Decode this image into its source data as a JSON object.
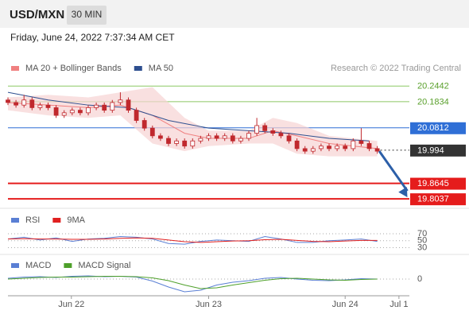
{
  "header": {
    "symbol": "USD/MXN",
    "interval": "30 MIN",
    "timestamp": "Friday, June 24, 2022 7:37:34 AM CET"
  },
  "chart_data": {
    "type": "candlestick",
    "source": "Research © 2022 Trading Central",
    "xlim": [
      0,
      100
    ],
    "xticks": [
      {
        "value": 15.8,
        "label": "Jun 22"
      },
      {
        "value": 50,
        "label": "Jun 23"
      },
      {
        "value": 84,
        "label": "Jun 24"
      },
      {
        "value": 97.4,
        "label": "Jul 1"
      }
    ],
    "ylim": [
      19.77,
      20.36
    ],
    "up_color": "#ffffff",
    "down_color": "#c0282d",
    "candles": {
      "x": [
        0,
        2,
        4,
        6,
        8,
        10,
        12,
        14,
        16,
        18,
        20,
        22,
        24,
        26,
        28,
        30,
        32,
        34,
        36,
        38,
        40,
        42,
        44,
        46,
        48,
        50,
        52,
        54,
        56,
        58,
        60,
        62,
        64,
        66,
        68,
        70,
        72,
        74,
        76,
        78,
        80,
        82,
        84,
        86,
        88,
        90,
        92
      ],
      "open": [
        20.19,
        20.18,
        20.17,
        20.19,
        20.16,
        20.17,
        20.16,
        20.13,
        20.14,
        20.15,
        20.14,
        20.16,
        20.17,
        20.15,
        20.18,
        20.19,
        20.15,
        20.11,
        20.08,
        20.05,
        20.04,
        20.02,
        20.03,
        20.01,
        20.03,
        20.04,
        20.05,
        20.04,
        20.05,
        20.03,
        20.04,
        20.06,
        20.09,
        20.07,
        20.06,
        20.05,
        20.03,
        20.0,
        19.99,
        20.0,
        20.01,
        20.0,
        20.01,
        20.0,
        20.03,
        20.02,
        20.0
      ],
      "high": [
        20.2,
        20.19,
        20.21,
        20.2,
        20.18,
        20.18,
        20.17,
        20.15,
        20.16,
        20.16,
        20.17,
        20.18,
        20.18,
        20.19,
        20.22,
        20.2,
        20.16,
        20.12,
        20.09,
        20.06,
        20.05,
        20.04,
        20.04,
        20.04,
        20.05,
        20.06,
        20.06,
        20.06,
        20.06,
        20.05,
        20.07,
        20.12,
        20.1,
        20.08,
        20.07,
        20.06,
        20.04,
        20.01,
        20.01,
        20.02,
        20.02,
        20.02,
        20.02,
        20.04,
        20.08,
        20.03,
        20.01
      ],
      "low": [
        20.17,
        20.16,
        20.16,
        20.15,
        20.15,
        20.15,
        20.12,
        20.12,
        20.13,
        20.13,
        20.13,
        20.15,
        20.14,
        20.14,
        20.17,
        20.14,
        20.1,
        20.07,
        20.04,
        20.03,
        20.01,
        20.01,
        20.0,
        20.0,
        20.02,
        20.03,
        20.03,
        20.03,
        20.02,
        20.02,
        20.03,
        20.05,
        20.06,
        20.05,
        20.04,
        20.02,
        19.99,
        19.98,
        19.98,
        19.99,
        19.99,
        19.99,
        19.99,
        19.99,
        20.01,
        19.99,
        19.98
      ],
      "close": [
        20.18,
        20.17,
        20.19,
        20.16,
        20.17,
        20.16,
        20.13,
        20.14,
        20.15,
        20.14,
        20.16,
        20.17,
        20.15,
        20.18,
        20.19,
        20.15,
        20.11,
        20.08,
        20.05,
        20.04,
        20.02,
        20.03,
        20.01,
        20.03,
        20.04,
        20.05,
        20.04,
        20.05,
        20.03,
        20.04,
        20.06,
        20.09,
        20.07,
        20.06,
        20.05,
        20.03,
        20.0,
        19.99,
        20.0,
        20.01,
        20.0,
        20.01,
        20.0,
        20.03,
        20.02,
        20.0,
        19.99
      ]
    },
    "bollinger": {
      "name": "MA 20 + Bollinger Bands",
      "color": "#f08080",
      "band_color": "#f7d3d3",
      "x": [
        0,
        10,
        20,
        28,
        36,
        44,
        50,
        60,
        66,
        72,
        80,
        92
      ],
      "upper": [
        20.2,
        20.21,
        20.2,
        20.22,
        20.24,
        20.12,
        20.07,
        20.07,
        20.12,
        20.1,
        20.05,
        20.03
      ],
      "middle": [
        20.18,
        20.17,
        20.16,
        20.17,
        20.13,
        20.06,
        20.04,
        20.04,
        20.07,
        20.05,
        20.02,
        20.0
      ],
      "lower": [
        20.15,
        20.13,
        20.12,
        20.13,
        20.02,
        19.99,
        20.01,
        20.02,
        20.02,
        19.98,
        19.97,
        19.97
      ]
    },
    "ma50": {
      "name": "MA 50",
      "color": "#2e4f8f",
      "x": [
        0,
        10,
        20,
        30,
        40,
        50,
        60,
        70,
        80,
        90
      ],
      "values": [
        20.22,
        20.19,
        20.17,
        20.16,
        20.11,
        20.08,
        20.07,
        20.06,
        20.04,
        20.03
      ]
    },
    "levels": [
      {
        "value": 20.2442,
        "color": "#8cc864",
        "text_color": "#5aa02c",
        "line": "solid",
        "line_width": 1,
        "label_style": "text"
      },
      {
        "value": 20.1834,
        "color": "#8cc864",
        "text_color": "#5aa02c",
        "line": "solid",
        "line_width": 1,
        "label_style": "text"
      },
      {
        "value": 20.0812,
        "color": "#2f6fd6",
        "text_color": "#ffffff",
        "line": "solid",
        "line_width": 1,
        "label_style": "box"
      },
      {
        "value": 19.994,
        "color": "#333333",
        "text_color": "#ffffff",
        "line": "dotted",
        "line_width": 1,
        "label_style": "box"
      },
      {
        "value": 19.8645,
        "color": "#e51c1c",
        "text_color": "#ffffff",
        "line": "solid",
        "line_width": 2,
        "label_style": "box"
      },
      {
        "value": 19.8037,
        "color": "#e51c1c",
        "text_color": "#ffffff",
        "line": "solid",
        "line_width": 2,
        "label_style": "box"
      }
    ],
    "forecast_arrow": {
      "x": [
        92.5,
        99.5
      ],
      "y": [
        19.99,
        19.81
      ],
      "color": "#2c5fa8"
    },
    "rsi": {
      "ylim": [
        15,
        85
      ],
      "yticks": [
        30,
        50,
        70
      ],
      "series": [
        {
          "name": "RSI",
          "color": "#5a7fd4",
          "x": [
            0,
            4,
            8,
            12,
            16,
            20,
            24,
            28,
            32,
            36,
            40,
            44,
            48,
            52,
            56,
            60,
            64,
            68,
            72,
            76,
            80,
            84,
            88,
            92
          ],
          "values": [
            55,
            60,
            52,
            58,
            48,
            55,
            57,
            62,
            60,
            55,
            42,
            40,
            48,
            52,
            50,
            48,
            62,
            55,
            45,
            45,
            50,
            52,
            55,
            48
          ]
        },
        {
          "name": "9MA",
          "color": "#e02020",
          "x": [
            0,
            4,
            8,
            12,
            16,
            20,
            24,
            28,
            32,
            36,
            40,
            44,
            48,
            52,
            56,
            60,
            64,
            68,
            72,
            76,
            80,
            84,
            88,
            92
          ],
          "values": [
            55,
            56,
            55,
            55,
            54,
            54,
            55,
            57,
            58,
            57,
            52,
            47,
            45,
            47,
            49,
            50,
            53,
            54,
            51,
            48,
            47,
            49,
            51,
            51
          ]
        }
      ]
    },
    "macd": {
      "ylim": [
        -0.04,
        0.04
      ],
      "yticks": [
        0
      ],
      "series": [
        {
          "name": "MACD",
          "color": "#5a7fd4",
          "x": [
            0,
            4,
            8,
            12,
            16,
            20,
            24,
            28,
            32,
            36,
            40,
            44,
            48,
            52,
            56,
            60,
            64,
            68,
            72,
            76,
            80,
            84,
            88,
            92
          ],
          "values": [
            0.002,
            0.005,
            0.006,
            0.004,
            0.007,
            0.008,
            0.006,
            0.007,
            0.005,
            -0.005,
            -0.02,
            -0.032,
            -0.028,
            -0.015,
            -0.008,
            -0.004,
            0.002,
            0.004,
            0.0,
            -0.003,
            -0.004,
            -0.002,
            0.001,
            0.0
          ]
        },
        {
          "name": "MACD Signal",
          "color": "#4ea02a",
          "x": [
            0,
            4,
            8,
            12,
            16,
            20,
            24,
            28,
            32,
            36,
            40,
            44,
            48,
            52,
            56,
            60,
            64,
            68,
            72,
            76,
            80,
            84,
            88,
            92
          ],
          "values": [
            0.0,
            0.002,
            0.004,
            0.005,
            0.005,
            0.006,
            0.007,
            0.007,
            0.006,
            0.003,
            -0.004,
            -0.015,
            -0.024,
            -0.022,
            -0.015,
            -0.009,
            -0.003,
            0.001,
            0.002,
            0.0,
            -0.002,
            -0.003,
            -0.001,
            0.0
          ]
        }
      ]
    }
  }
}
